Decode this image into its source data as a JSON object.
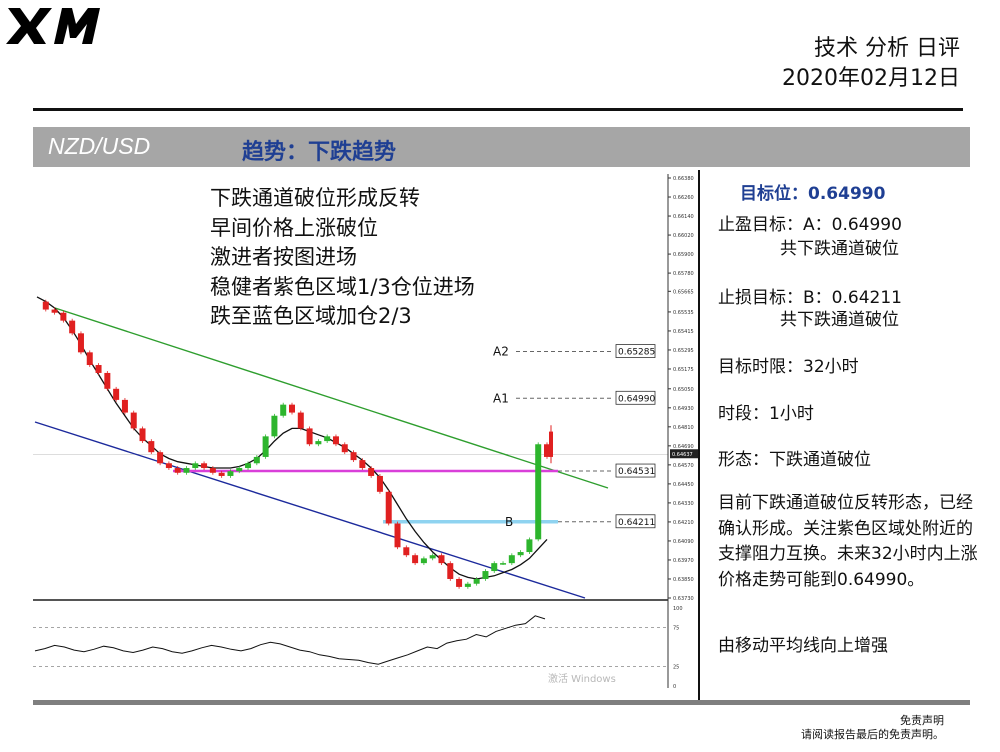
{
  "header": {
    "logo": "XM",
    "title_line1": "技术 分析 日评",
    "title_line2": "2020年02月12日"
  },
  "banner": {
    "pair": "NZD/USD",
    "trend": "趋势：下跌趋势"
  },
  "notes": [
    "下跌通道破位形成反转",
    "早间价格上涨破位",
    "激进者按图进场",
    "稳健者紫色区域1/3仓位进场",
    "跌至蓝色区域加仓2/3"
  ],
  "side": {
    "target": "目标位：0.64990",
    "take_profit": "止盈目标：A：0.64990",
    "take_profit_note": "共下跌通道破位",
    "stop_loss": "止损目标：B：0.64211",
    "stop_loss_note": "共下跌通道破位",
    "time_limit": "目标时限：32小时",
    "period": "时段：1小时",
    "pattern": "形态：下跌通道破位",
    "description": "目前下跌通道破位反转形态，已经确认形成。关注紫色区域处附近的支撑阻力互换。未来32小时内上涨价格走势可能到0.64990。",
    "ma_note": "由移动平均线向上增强"
  },
  "footer": {
    "line1": "免责声明",
    "line2": "请阅读报告最后的免责声明。"
  },
  "colors": {
    "banner_bg": "#a6a6a6",
    "trend_text": "#1f3f93",
    "bull_candle": "#2db52d",
    "bear_candle": "#e02020",
    "channel_upper": "#2e9e2e",
    "channel_lower": "#1c2a9c",
    "support_zone": "#d93fd9",
    "stop_zone": "#8fd3f0"
  },
  "chart_data": {
    "type": "line",
    "title": "NZD/USD",
    "timeframe": "1小时",
    "price_ticks": [
      "0.66380",
      "0.66260",
      "0.66140",
      "0.66020",
      "0.65900",
      "0.65780",
      "0.65665",
      "0.65535",
      "0.65415",
      "0.65295",
      "0.65175",
      "0.65050",
      "0.64930",
      "0.64810",
      "0.64690",
      "0.64570",
      "0.64450",
      "0.64330",
      "0.64210",
      "0.64090",
      "0.63970",
      "0.63850",
      "0.63730"
    ],
    "ylim": [
      0.6373,
      0.6638
    ],
    "current_price": "0.64637",
    "levels": [
      {
        "name": "A2",
        "value": "0.65285"
      },
      {
        "name": "A1",
        "value": "0.64990"
      },
      {
        "name": "",
        "value": "0.64531"
      },
      {
        "name": "B",
        "value": "0.64211"
      }
    ],
    "price_series": [
      0.656,
      0.6555,
      0.6553,
      0.6548,
      0.654,
      0.6528,
      0.652,
      0.6515,
      0.6505,
      0.6498,
      0.649,
      0.648,
      0.6472,
      0.6465,
      0.6458,
      0.6455,
      0.6452,
      0.6455,
      0.6458,
      0.6455,
      0.6452,
      0.645,
      0.6453,
      0.6455,
      0.6458,
      0.6462,
      0.6475,
      0.6488,
      0.6495,
      0.649,
      0.648,
      0.647,
      0.6472,
      0.6475,
      0.647,
      0.6465,
      0.646,
      0.6455,
      0.645,
      0.644,
      0.642,
      0.6405,
      0.64,
      0.6395,
      0.6398,
      0.64,
      0.6395,
      0.6385,
      0.638,
      0.6382,
      0.6385,
      0.639,
      0.6395,
      0.6395,
      0.64,
      0.6402,
      0.641,
      0.647,
      0.6462
    ],
    "ma_series": [
      0.6563,
      0.656,
      0.6556,
      0.655,
      0.6542,
      0.6533,
      0.6523,
      0.6514,
      0.6505,
      0.6496,
      0.6488,
      0.648,
      0.6474,
      0.6469,
      0.6464,
      0.6461,
      0.6459,
      0.6458,
      0.6457,
      0.6456,
      0.6455,
      0.6455,
      0.6455,
      0.6456,
      0.6458,
      0.6461,
      0.6466,
      0.6472,
      0.6477,
      0.648,
      0.648,
      0.6478,
      0.6476,
      0.6474,
      0.6471,
      0.6468,
      0.6464,
      0.646,
      0.6455,
      0.6449,
      0.6441,
      0.6432,
      0.6423,
      0.6415,
      0.6408,
      0.6402,
      0.6397,
      0.6392,
      0.6388,
      0.6386,
      0.6385,
      0.6386,
      0.6387,
      0.6389,
      0.6391,
      0.6394,
      0.6398,
      0.6404,
      0.641
    ],
    "oscillator": {
      "ticks": [
        "100",
        "75",
        "25",
        "0"
      ],
      "ylim": [
        0,
        100
      ],
      "values": [
        45,
        48,
        52,
        50,
        46,
        44,
        47,
        51,
        49,
        45,
        43,
        46,
        50,
        48,
        44,
        42,
        45,
        49,
        52,
        50,
        47,
        45,
        48,
        53,
        56,
        54,
        50,
        46,
        44,
        40,
        38,
        35,
        34,
        33,
        30,
        28,
        32,
        36,
        40,
        45,
        50,
        48,
        55,
        58,
        60,
        66,
        63,
        70,
        74,
        78,
        80,
        90,
        86
      ]
    },
    "watermark": "激活 Windows"
  }
}
